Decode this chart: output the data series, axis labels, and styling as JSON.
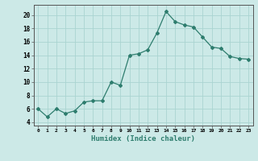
{
  "x": [
    0,
    1,
    2,
    3,
    4,
    5,
    6,
    7,
    8,
    9,
    10,
    11,
    12,
    13,
    14,
    15,
    16,
    17,
    18,
    19,
    20,
    21,
    22,
    23
  ],
  "y": [
    6.0,
    4.8,
    6.0,
    5.3,
    5.7,
    7.0,
    7.2,
    7.2,
    10.0,
    9.5,
    14.0,
    14.2,
    14.8,
    17.3,
    20.5,
    19.0,
    18.5,
    18.2,
    16.7,
    15.2,
    15.0,
    13.8,
    13.5,
    13.4
  ],
  "line_color": "#2e7d6e",
  "marker": "D",
  "marker_size": 2.0,
  "bg_color": "#cce9e7",
  "grid_color": "#aad4d1",
  "xlabel": "Humidex (Indice chaleur)",
  "ylabel_ticks": [
    4,
    6,
    8,
    10,
    12,
    14,
    16,
    18,
    20
  ],
  "ylim": [
    3.5,
    21.5
  ],
  "xlim": [
    -0.5,
    23.5
  ],
  "xticks": [
    0,
    1,
    2,
    3,
    4,
    5,
    6,
    7,
    8,
    9,
    10,
    11,
    12,
    13,
    14,
    15,
    16,
    17,
    18,
    19,
    20,
    21,
    22,
    23
  ]
}
